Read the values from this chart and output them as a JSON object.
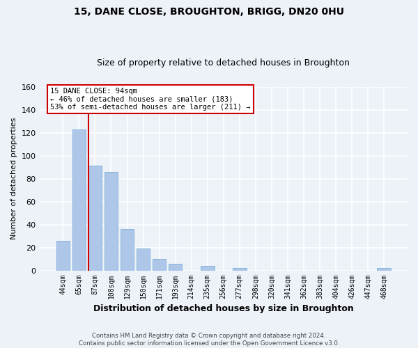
{
  "title": "15, DANE CLOSE, BROUGHTON, BRIGG, DN20 0HU",
  "subtitle": "Size of property relative to detached houses in Broughton",
  "xlabel": "Distribution of detached houses by size in Broughton",
  "ylabel": "Number of detached properties",
  "bar_labels": [
    "44sqm",
    "65sqm",
    "87sqm",
    "108sqm",
    "129sqm",
    "150sqm",
    "171sqm",
    "193sqm",
    "214sqm",
    "235sqm",
    "256sqm",
    "277sqm",
    "298sqm",
    "320sqm",
    "341sqm",
    "362sqm",
    "383sqm",
    "404sqm",
    "426sqm",
    "447sqm",
    "468sqm"
  ],
  "bar_values": [
    26,
    123,
    91,
    86,
    36,
    19,
    10,
    6,
    0,
    4,
    0,
    2,
    0,
    0,
    0,
    0,
    0,
    0,
    0,
    0,
    2
  ],
  "bar_color": "#aec6e8",
  "bar_edge_color": "#7aaed6",
  "ylim": [
    0,
    160
  ],
  "yticks": [
    0,
    20,
    40,
    60,
    80,
    100,
    120,
    140,
    160
  ],
  "property_line_index": 2,
  "property_line_color": "#cc0000",
  "annotation_title": "15 DANE CLOSE: 94sqm",
  "annotation_line1": "← 46% of detached houses are smaller (183)",
  "annotation_line2": "53% of semi-detached houses are larger (211) →",
  "annotation_box_color": "#cc0000",
  "footer_line1": "Contains HM Land Registry data © Crown copyright and database right 2024.",
  "footer_line2": "Contains public sector information licensed under the Open Government Licence v3.0.",
  "background_color": "#edf2f9",
  "grid_color": "#ffffff"
}
